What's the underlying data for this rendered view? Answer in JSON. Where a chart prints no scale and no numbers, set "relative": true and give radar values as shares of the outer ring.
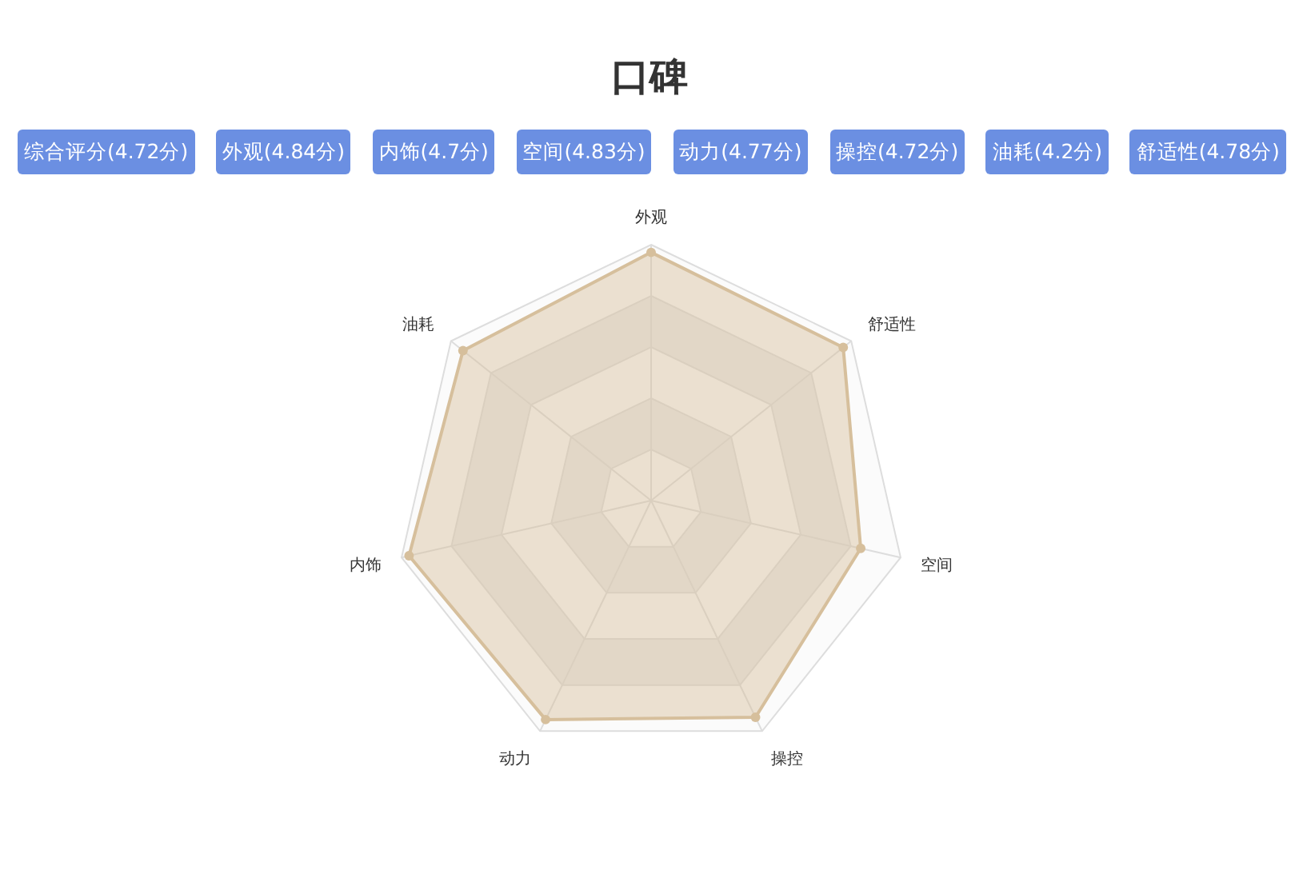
{
  "chart_data": {
    "type": "radar",
    "title": "口碑",
    "annotations": [
      "综合评分(4.72分)",
      "外观(4.84分)",
      "内饰(4.7分)",
      "空间(4.83分)",
      "动力(4.77分)",
      "操控(4.72分)",
      "油耗(4.2分)",
      "舒适性(4.78分)"
    ],
    "categories": [
      "外观",
      "舒适性",
      "空间",
      "操控",
      "动力",
      "内饰",
      "油耗"
    ],
    "relative": true,
    "series": [
      {
        "color": "#d6bf9c",
        "values": [
          0.97,
          0.96,
          0.84,
          0.94,
          0.95,
          0.97,
          0.94
        ]
      }
    ],
    "grid": true,
    "marker": "circle"
  }
}
